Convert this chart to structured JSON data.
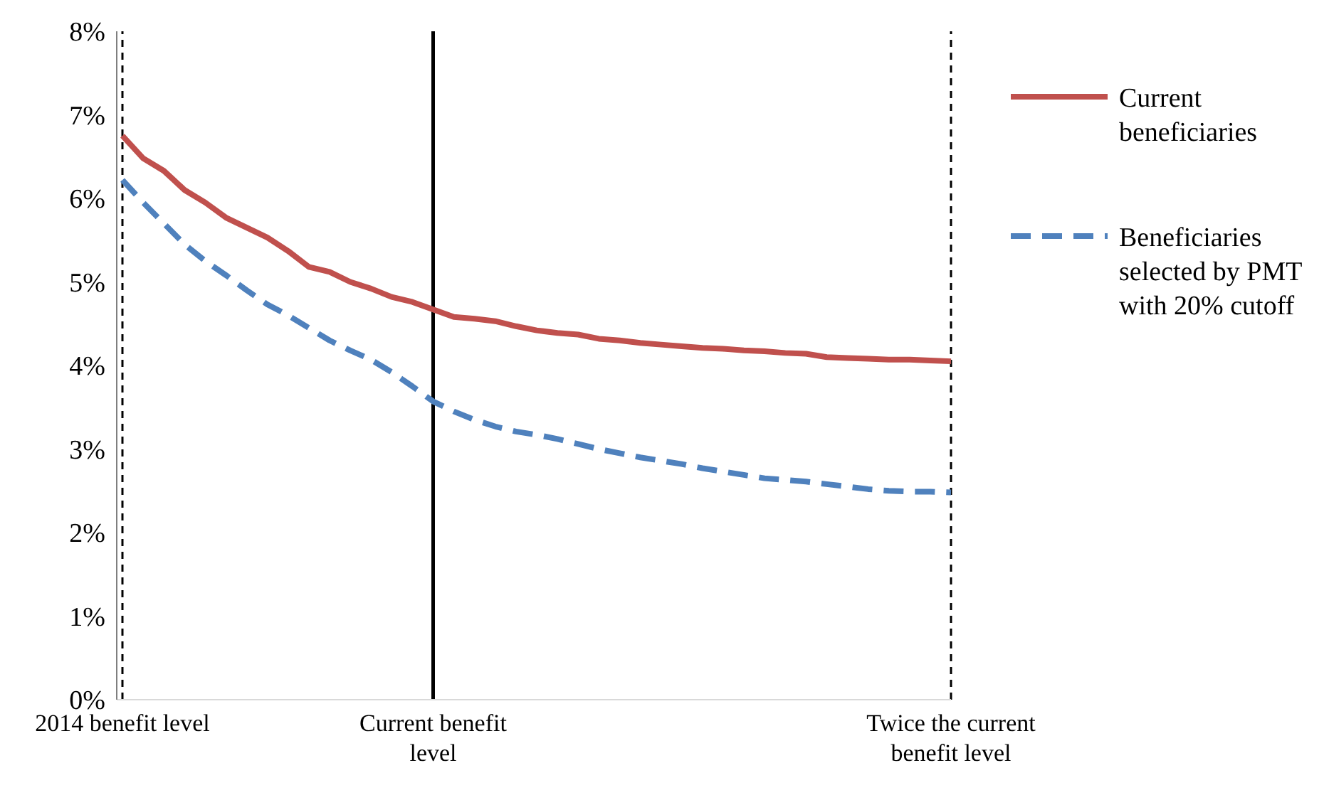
{
  "chart_data": {
    "type": "line",
    "categories": [
      "2014 benefit level",
      null,
      null,
      null,
      null,
      null,
      null,
      null,
      null,
      null,
      null,
      null,
      null,
      null,
      null,
      "Current benefit level",
      null,
      null,
      null,
      null,
      null,
      null,
      null,
      null,
      null,
      null,
      null,
      null,
      null,
      null,
      null,
      null,
      null,
      null,
      null,
      null,
      null,
      null,
      null,
      null,
      "Twice the current benefit level"
    ],
    "series": [
      {
        "name": "Current beneficiaries",
        "color": "#c0504d",
        "line_style": "solid",
        "values": [
          6.75,
          6.48,
          6.33,
          6.1,
          5.95,
          5.77,
          5.65,
          5.53,
          5.37,
          5.18,
          5.12,
          5.0,
          4.92,
          4.82,
          4.76,
          4.67,
          4.58,
          4.56,
          4.53,
          4.47,
          4.42,
          4.39,
          4.37,
          4.32,
          4.3,
          4.27,
          4.25,
          4.23,
          4.21,
          4.2,
          4.18,
          4.17,
          4.15,
          4.14,
          4.1,
          4.09,
          4.08,
          4.07,
          4.07,
          4.06,
          4.05
        ]
      },
      {
        "name": "Beneficiaries selected by PMT with 20% cutoff",
        "color": "#4f81bd",
        "line_style": "dashed",
        "values": [
          6.22,
          5.95,
          5.7,
          5.45,
          5.25,
          5.08,
          4.9,
          4.73,
          4.6,
          4.45,
          4.3,
          4.18,
          4.07,
          3.92,
          3.75,
          3.57,
          3.45,
          3.35,
          3.27,
          3.21,
          3.17,
          3.12,
          3.06,
          3.0,
          2.95,
          2.9,
          2.86,
          2.82,
          2.77,
          2.73,
          2.69,
          2.65,
          2.63,
          2.61,
          2.58,
          2.55,
          2.52,
          2.5,
          2.49,
          2.49,
          2.48
        ]
      }
    ],
    "ylim": [
      0,
      8
    ],
    "yticks": [
      {
        "value": 0,
        "label": "0%"
      },
      {
        "value": 1,
        "label": "1%"
      },
      {
        "value": 2,
        "label": "2%"
      },
      {
        "value": 3,
        "label": "3%"
      },
      {
        "value": 4,
        "label": "4%"
      },
      {
        "value": 5,
        "label": "5%"
      },
      {
        "value": 6,
        "label": "6%"
      },
      {
        "value": 7,
        "label": "7%"
      },
      {
        "value": 8,
        "label": "8%"
      }
    ],
    "ref_lines": [
      {
        "axis": "x",
        "value": "2014 benefit level",
        "color": "#000000",
        "line_style": "dashed"
      },
      {
        "axis": "x",
        "value": "Current benefit level",
        "color": "#000000",
        "line_style": "solid"
      },
      {
        "axis": "x",
        "value": "Twice the current benefit level",
        "color": "#000000",
        "line_style": "dashed"
      }
    ],
    "grid": false,
    "legend": "right",
    "marker": "none"
  }
}
